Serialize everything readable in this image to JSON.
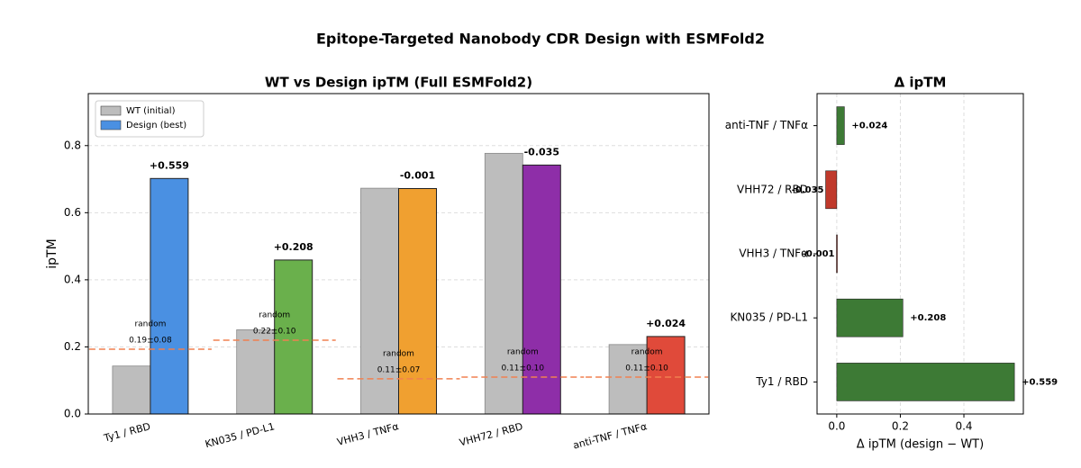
{
  "title": "Epitope-Targeted Nanobody CDR Design with ESMFold2",
  "chart_data": [
    {
      "type": "bar",
      "title": "WT vs Design ipTM (Full ESMFold2)",
      "y_label": "ipTM",
      "categories": [
        "Ty1 / RBD",
        "KN035 / PD-L1",
        "VHH3 / TNFα",
        "VHH72 / RBD",
        "anti-TNF / TNFα"
      ],
      "series": [
        {
          "name": "WT (initial)",
          "color": "#bdbdbd",
          "values": [
            0.143,
            0.251,
            0.673,
            0.777,
            0.207
          ]
        },
        {
          "name": "Design (best)",
          "color": "#4a90e2",
          "colors": [
            "#4a90e2",
            "#6ab04c",
            "#f0a030",
            "#8e2ea8",
            "#e04a3a"
          ],
          "values": [
            0.702,
            0.459,
            0.672,
            0.742,
            0.231
          ]
        }
      ],
      "annotations": [
        {
          "text": "+0.559",
          "color": "#3d7a35"
        },
        {
          "text": "+0.208",
          "color": "#3d7a35"
        },
        {
          "text": "-0.001",
          "color": "#777777"
        },
        {
          "text": "-0.035",
          "color": "#c0392b"
        },
        {
          "text": "+0.024",
          "color": "#777777"
        }
      ],
      "random_baseline": {
        "label": "random",
        "color": "#f08050",
        "values": [
          0.193,
          0.22,
          0.105,
          0.11,
          0.11
        ],
        "value_labels": [
          "0.19±0.08",
          "0.22±0.10",
          "0.11±0.07",
          "0.11±0.10",
          "0.11±0.10"
        ]
      },
      "ylim": [
        0,
        0.955
      ],
      "yticks": [
        {
          "value": 0,
          "label": "0.0"
        },
        0.2,
        0.4,
        0.6,
        0.8
      ],
      "grid": true,
      "legend": "upper left"
    },
    {
      "type": "hbar",
      "title": "Δ ipTM",
      "x_label": "Δ ipTM (design − WT)",
      "categories": [
        "Ty1 / RBD",
        "KN035 / PD-L1",
        "VHH3 / TNFα",
        "VHH72 / RBD",
        "anti-TNF / TNFα"
      ],
      "values": [
        0.559,
        0.208,
        -0.001,
        -0.035,
        0.024
      ],
      "value_labels": [
        "+0.559",
        "+0.208",
        "-0.001",
        "-0.035",
        "+0.024"
      ],
      "positive_color": "#3d7a35",
      "negative_color": "#c0392b",
      "xlim": [
        -0.062,
        0.587
      ],
      "xticks": [
        {
          "value": 0,
          "label": "0.0"
        },
        0.2,
        0.4
      ],
      "grid": true
    }
  ]
}
